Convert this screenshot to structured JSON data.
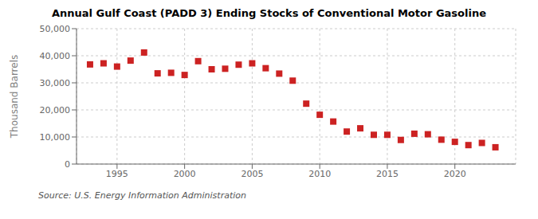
{
  "chart_data": {
    "type": "scatter",
    "title": "Annual Gulf Coast (PADD 3) Ending Stocks of Conventional Motor Gasoline",
    "ylabel": "Thousand Barrels",
    "annotations": [
      "Source: U.S. Energy Information Administration"
    ],
    "x": [
      1993,
      1994,
      1995,
      1996,
      1997,
      1998,
      1999,
      2000,
      2001,
      2002,
      2003,
      2004,
      2005,
      2006,
      2007,
      2008,
      2009,
      2010,
      2011,
      2012,
      2013,
      2014,
      2015,
      2016,
      2017,
      2018,
      2019,
      2020,
      2021,
      2022,
      2023
    ],
    "values": [
      36800,
      37200,
      36000,
      38200,
      41200,
      33500,
      33700,
      32900,
      38000,
      35000,
      35200,
      36700,
      37200,
      35400,
      33400,
      30800,
      22300,
      18200,
      15700,
      12000,
      13200,
      10800,
      10800,
      8900,
      11200,
      11000,
      9000,
      8200,
      7000,
      7800,
      6200
    ],
    "color": "#cc2222",
    "marker": "square",
    "xlim": [
      1992,
      2024.5
    ],
    "xticks": [
      1995,
      2000,
      2005,
      2010,
      2015,
      2020
    ],
    "ylim": [
      0,
      50000
    ],
    "yticks": [
      0,
      {
        "value": 10000,
        "label": "10,000"
      },
      {
        "value": 20000,
        "label": "20,000"
      },
      {
        "value": 30000,
        "label": "30,000"
      },
      {
        "value": 40000,
        "label": "40,000"
      },
      {
        "value": 50000,
        "label": "50,000"
      }
    ],
    "grid": true
  }
}
